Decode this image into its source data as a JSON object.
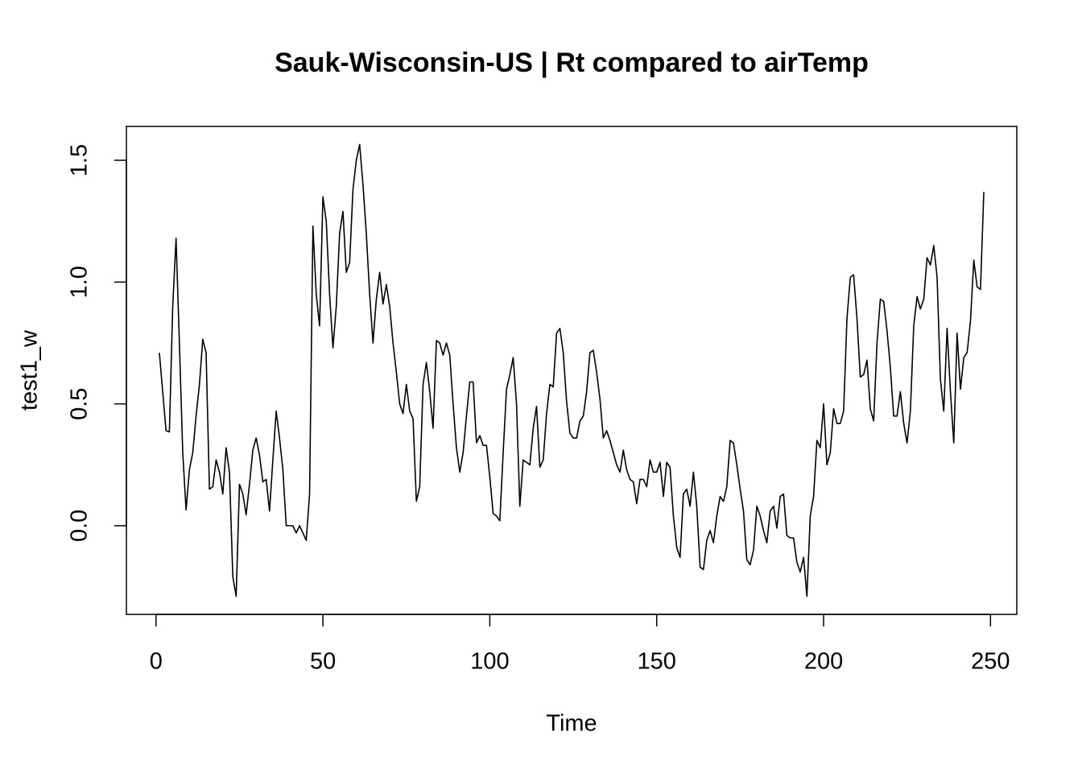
{
  "chart_data": {
    "type": "line",
    "title": "Sauk-Wisconsin-US | Rt compared to airTemp",
    "x_label": "Time",
    "y_label": "test1_w",
    "color": "#000000",
    "xlim": [
      -8.88,
      257.88
    ],
    "ylim": [
      -0.364,
      1.639
    ],
    "xticks": [
      0,
      50,
      100,
      150,
      200,
      250
    ],
    "yticks": [
      {
        "value": 0,
        "label": "0.0"
      },
      0.5,
      {
        "value": 1,
        "label": "1.0"
      },
      1.5
    ],
    "x": [
      1,
      2,
      3,
      4,
      5,
      6,
      7,
      8,
      9,
      10,
      11,
      12,
      13,
      14,
      15,
      16,
      17,
      18,
      19,
      20,
      21,
      22,
      23,
      24,
      25,
      26,
      27,
      28,
      29,
      30,
      31,
      32,
      33,
      34,
      35,
      36,
      37,
      38,
      39,
      40,
      41,
      42,
      43,
      44,
      45,
      46,
      47,
      48,
      49,
      50,
      51,
      52,
      53,
      54,
      55,
      56,
      57,
      58,
      59,
      60,
      61,
      62,
      63,
      64,
      65,
      66,
      67,
      68,
      69,
      70,
      71,
      72,
      73,
      74,
      75,
      76,
      77,
      78,
      79,
      80,
      81,
      82,
      83,
      84,
      85,
      86,
      87,
      88,
      89,
      90,
      91,
      92,
      93,
      94,
      95,
      96,
      97,
      98,
      99,
      100,
      101,
      102,
      103,
      104,
      105,
      106,
      107,
      108,
      109,
      110,
      111,
      112,
      113,
      114,
      115,
      116,
      117,
      118,
      119,
      120,
      121,
      122,
      123,
      124,
      125,
      126,
      127,
      128,
      129,
      130,
      131,
      132,
      133,
      134,
      135,
      136,
      137,
      138,
      139,
      140,
      141,
      142,
      143,
      144,
      145,
      146,
      147,
      148,
      149,
      150,
      151,
      152,
      153,
      154,
      155,
      156,
      157,
      158,
      159,
      160,
      161,
      162,
      163,
      164,
      165,
      166,
      167,
      168,
      169,
      170,
      171,
      172,
      173,
      174,
      175,
      176,
      177,
      178,
      179,
      180,
      181,
      182,
      183,
      184,
      185,
      186,
      187,
      188,
      189,
      190,
      191,
      192,
      193,
      194,
      195,
      196,
      197,
      198,
      199,
      200,
      201,
      202,
      203,
      204,
      205,
      206,
      207,
      208,
      209,
      210,
      211,
      212,
      213,
      214,
      215,
      216,
      217,
      218,
      219,
      220,
      221,
      222,
      223,
      224,
      225,
      226,
      227,
      228,
      229,
      230,
      231,
      232,
      233,
      234,
      235,
      236,
      237,
      238,
      239,
      240,
      241,
      242,
      243,
      244,
      245,
      246,
      247,
      248
    ],
    "values": [
      0.71,
      0.55,
      0.39,
      0.385,
      0.9,
      1.18,
      0.75,
      0.3,
      0.065,
      0.23,
      0.3,
      0.45,
      0.58,
      0.765,
      0.71,
      0.15,
      0.16,
      0.27,
      0.22,
      0.13,
      0.32,
      0.22,
      -0.21,
      -0.29,
      0.17,
      0.13,
      0.045,
      0.17,
      0.31,
      0.36,
      0.29,
      0.18,
      0.19,
      0.06,
      0.27,
      0.47,
      0.36,
      0.23,
      0.0,
      0.0,
      0.0,
      -0.03,
      0.0,
      -0.03,
      -0.06,
      0.13,
      1.23,
      0.95,
      0.82,
      1.35,
      1.25,
      0.95,
      0.73,
      0.9,
      1.2,
      1.29,
      1.04,
      1.08,
      1.38,
      1.5,
      1.565,
      1.4,
      1.2,
      0.95,
      0.75,
      0.93,
      1.04,
      0.91,
      0.99,
      0.9,
      0.75,
      0.63,
      0.5,
      0.46,
      0.58,
      0.47,
      0.44,
      0.1,
      0.16,
      0.58,
      0.67,
      0.55,
      0.4,
      0.76,
      0.75,
      0.7,
      0.75,
      0.7,
      0.5,
      0.32,
      0.22,
      0.3,
      0.45,
      0.59,
      0.59,
      0.34,
      0.37,
      0.33,
      0.33,
      0.2,
      0.05,
      0.04,
      0.02,
      0.3,
      0.56,
      0.62,
      0.69,
      0.5,
      0.08,
      0.27,
      0.26,
      0.25,
      0.4,
      0.49,
      0.24,
      0.27,
      0.46,
      0.58,
      0.57,
      0.79,
      0.81,
      0.71,
      0.51,
      0.38,
      0.36,
      0.36,
      0.43,
      0.45,
      0.55,
      0.71,
      0.72,
      0.63,
      0.52,
      0.36,
      0.39,
      0.35,
      0.3,
      0.25,
      0.22,
      0.31,
      0.23,
      0.19,
      0.18,
      0.09,
      0.19,
      0.19,
      0.16,
      0.27,
      0.22,
      0.22,
      0.26,
      0.12,
      0.26,
      0.24,
      0.04,
      -0.09,
      -0.13,
      0.13,
      0.15,
      0.08,
      0.22,
      0.08,
      -0.17,
      -0.18,
      -0.06,
      -0.02,
      -0.07,
      0.04,
      0.12,
      0.1,
      0.16,
      0.35,
      0.34,
      0.25,
      0.15,
      0.06,
      -0.14,
      -0.16,
      -0.1,
      0.08,
      0.04,
      -0.02,
      -0.07,
      0.06,
      0.08,
      -0.01,
      0.12,
      0.13,
      -0.04,
      -0.05,
      -0.05,
      -0.15,
      -0.19,
      -0.13,
      -0.29,
      0.04,
      0.12,
      0.35,
      0.32,
      0.5,
      0.25,
      0.3,
      0.48,
      0.42,
      0.42,
      0.47,
      0.85,
      1.02,
      1.03,
      0.85,
      0.61,
      0.62,
      0.68,
      0.48,
      0.43,
      0.75,
      0.93,
      0.92,
      0.8,
      0.65,
      0.45,
      0.45,
      0.55,
      0.42,
      0.34,
      0.47,
      0.82,
      0.94,
      0.89,
      0.93,
      1.1,
      1.07,
      1.15,
      1.02,
      0.6,
      0.47,
      0.81,
      0.55,
      0.34,
      0.79,
      0.56,
      0.69,
      0.71,
      0.84,
      1.09,
      0.98,
      0.97,
      1.37
    ]
  }
}
